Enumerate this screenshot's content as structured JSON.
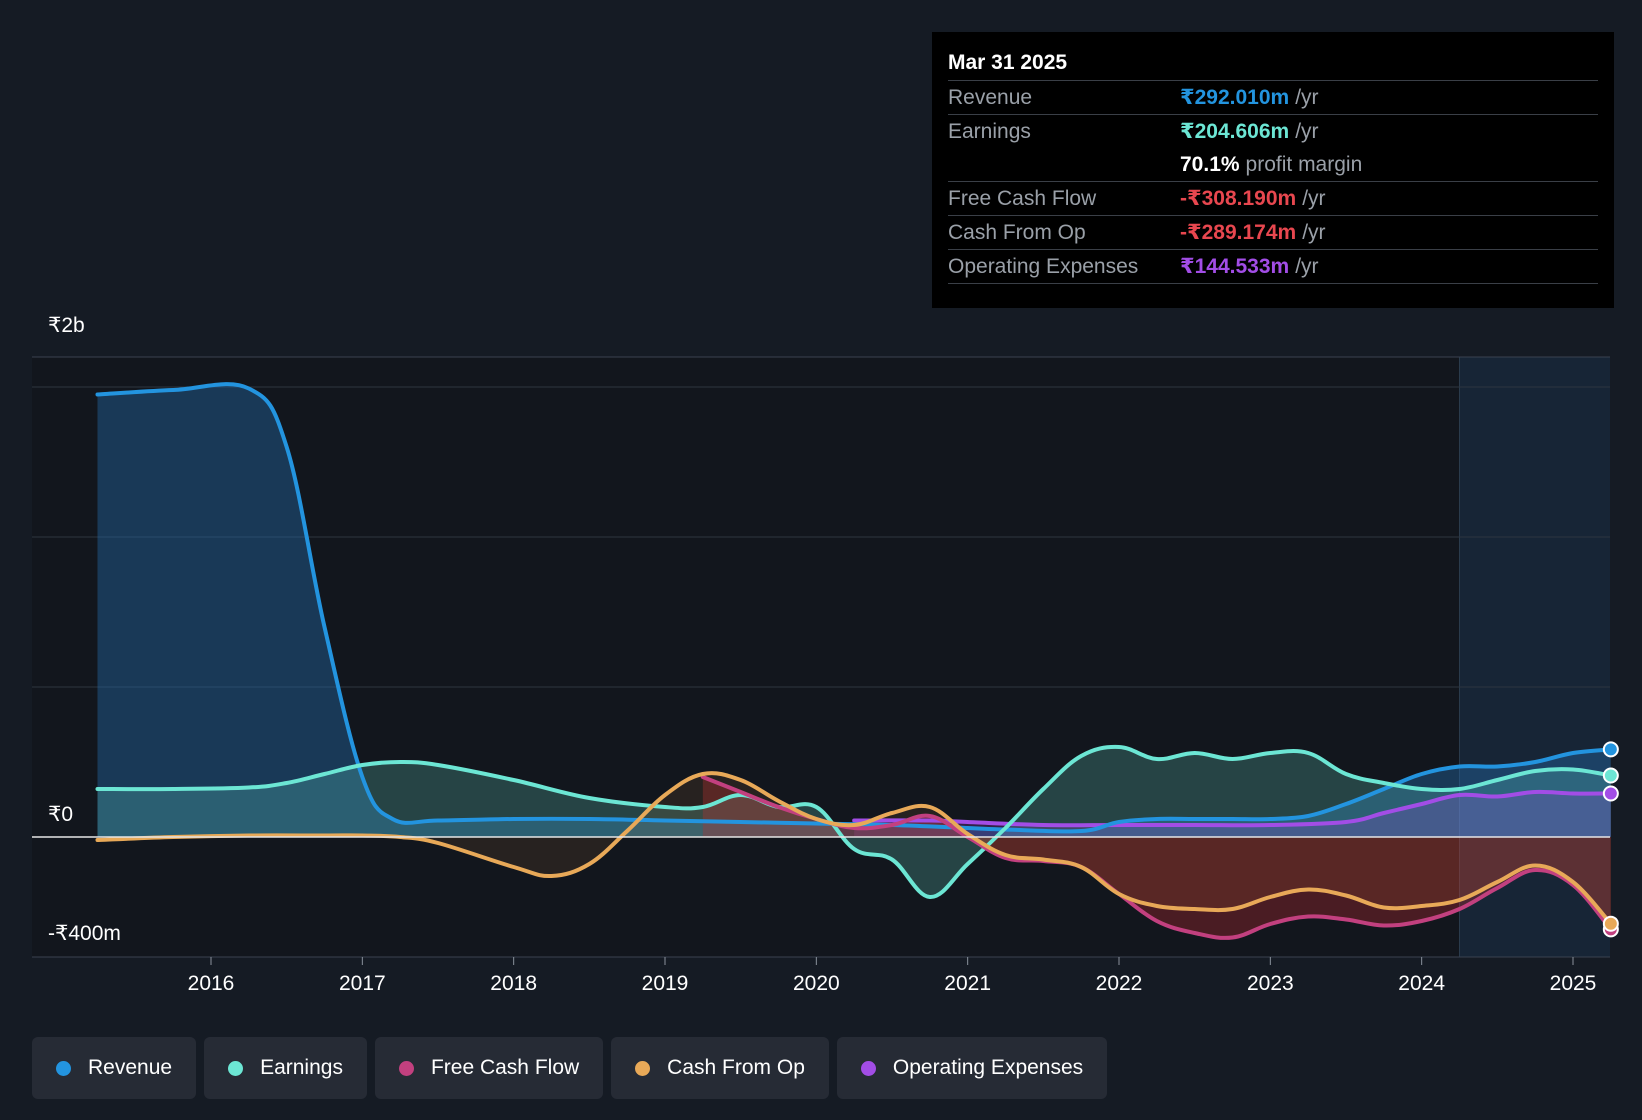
{
  "tooltip": {
    "date": "Mar 31 2025",
    "rows": [
      {
        "label": "Revenue",
        "value": "₹292.010m",
        "unit": "/yr",
        "color": "#2394df"
      },
      {
        "label": "Earnings",
        "value": "₹204.606m",
        "unit": "/yr",
        "color": "#6ce6d4"
      },
      {
        "label": "",
        "value": "70.1%",
        "unit": "profit margin",
        "color": "#ffffff"
      },
      {
        "label": "Free Cash Flow",
        "value": "-₹308.190m",
        "unit": "/yr",
        "color": "#e8474f"
      },
      {
        "label": "Cash From Op",
        "value": "-₹289.174m",
        "unit": "/yr",
        "color": "#e8474f"
      },
      {
        "label": "Operating Expenses",
        "value": "₹144.533m",
        "unit": "/yr",
        "color": "#a24de6"
      }
    ]
  },
  "legend": [
    {
      "label": "Revenue",
      "color": "#2394df"
    },
    {
      "label": "Earnings",
      "color": "#6ce6d4"
    },
    {
      "label": "Free Cash Flow",
      "color": "#c2407f"
    },
    {
      "label": "Cash From Op",
      "color": "#e8a958"
    },
    {
      "label": "Operating Expenses",
      "color": "#a24de6"
    }
  ],
  "chart_data": {
    "type": "line",
    "title": "",
    "xlabel": "",
    "ylabel": "",
    "y_tick_labels": [
      "₹2b",
      "₹0",
      "-₹400m"
    ],
    "x_tick_labels": [
      "2016",
      "2017",
      "2018",
      "2019",
      "2020",
      "2021",
      "2022",
      "2023",
      "2024",
      "2025"
    ],
    "x_ticks": [
      2016,
      2017,
      2018,
      2019,
      2020,
      2021,
      2022,
      2023,
      2024,
      2025
    ],
    "xlim": [
      2015.2,
      2025.25
    ],
    "ylim": [
      -400,
      1600
    ],
    "forecast_start": 2024.25,
    "series": [
      {
        "name": "Revenue",
        "color": "#2394df",
        "fill": true,
        "points": [
          [
            2015.25,
            1475
          ],
          [
            2015.75,
            1490
          ],
          [
            2016.25,
            1495
          ],
          [
            2016.5,
            1300
          ],
          [
            2016.75,
            700
          ],
          [
            2017.0,
            200
          ],
          [
            2017.2,
            60
          ],
          [
            2017.5,
            55
          ],
          [
            2018.0,
            60
          ],
          [
            2018.5,
            60
          ],
          [
            2019.0,
            55
          ],
          [
            2019.5,
            50
          ],
          [
            2020.0,
            45
          ],
          [
            2020.5,
            40
          ],
          [
            2021.0,
            30
          ],
          [
            2021.25,
            25
          ],
          [
            2021.75,
            20
          ],
          [
            2022.0,
            50
          ],
          [
            2022.25,
            60
          ],
          [
            2022.5,
            60
          ],
          [
            2022.75,
            60
          ],
          [
            2023.0,
            60
          ],
          [
            2023.25,
            70
          ],
          [
            2023.5,
            110
          ],
          [
            2023.75,
            160
          ],
          [
            2024.0,
            210
          ],
          [
            2024.25,
            235
          ],
          [
            2024.5,
            235
          ],
          [
            2024.75,
            250
          ],
          [
            2025.0,
            280
          ],
          [
            2025.25,
            292
          ]
        ]
      },
      {
        "name": "Earnings",
        "color": "#6ce6d4",
        "fill": true,
        "points": [
          [
            2015.25,
            160
          ],
          [
            2015.75,
            160
          ],
          [
            2016.25,
            165
          ],
          [
            2016.5,
            180
          ],
          [
            2016.75,
            210
          ],
          [
            2017.0,
            240
          ],
          [
            2017.25,
            250
          ],
          [
            2017.5,
            240
          ],
          [
            2018.0,
            190
          ],
          [
            2018.5,
            130
          ],
          [
            2019.0,
            100
          ],
          [
            2019.25,
            100
          ],
          [
            2019.5,
            140
          ],
          [
            2019.75,
            100
          ],
          [
            2020.0,
            100
          ],
          [
            2020.25,
            -40
          ],
          [
            2020.5,
            -75
          ],
          [
            2020.75,
            -200
          ],
          [
            2021.0,
            -90
          ],
          [
            2021.25,
            30
          ],
          [
            2021.5,
            160
          ],
          [
            2021.75,
            270
          ],
          [
            2022.0,
            300
          ],
          [
            2022.25,
            260
          ],
          [
            2022.5,
            280
          ],
          [
            2022.75,
            260
          ],
          [
            2023.0,
            280
          ],
          [
            2023.25,
            280
          ],
          [
            2023.5,
            210
          ],
          [
            2023.75,
            180
          ],
          [
            2024.0,
            160
          ],
          [
            2024.25,
            160
          ],
          [
            2024.5,
            190
          ],
          [
            2024.75,
            220
          ],
          [
            2025.0,
            225
          ],
          [
            2025.25,
            205
          ]
        ]
      },
      {
        "name": "Free Cash Flow",
        "color": "#c2407f",
        "fill": false,
        "points": [
          [
            2019.25,
            200
          ],
          [
            2019.5,
            150
          ],
          [
            2019.75,
            100
          ],
          [
            2020.0,
            60
          ],
          [
            2020.25,
            30
          ],
          [
            2020.5,
            40
          ],
          [
            2020.75,
            70
          ],
          [
            2021.0,
            0
          ],
          [
            2021.25,
            -70
          ],
          [
            2021.5,
            -80
          ],
          [
            2021.75,
            -100
          ],
          [
            2022.0,
            -190
          ],
          [
            2022.25,
            -280
          ],
          [
            2022.5,
            -320
          ],
          [
            2022.75,
            -335
          ],
          [
            2023.0,
            -290
          ],
          [
            2023.25,
            -265
          ],
          [
            2023.5,
            -275
          ],
          [
            2023.75,
            -295
          ],
          [
            2024.0,
            -280
          ],
          [
            2024.25,
            -240
          ],
          [
            2024.5,
            -170
          ],
          [
            2024.75,
            -110
          ],
          [
            2025.0,
            -160
          ],
          [
            2025.25,
            -308
          ]
        ]
      },
      {
        "name": "Cash From Op",
        "color": "#e8a958",
        "fill": false,
        "points": [
          [
            2015.25,
            -10
          ],
          [
            2015.75,
            0
          ],
          [
            2016.25,
            5
          ],
          [
            2016.75,
            5
          ],
          [
            2017.0,
            5
          ],
          [
            2017.25,
            0
          ],
          [
            2017.5,
            -20
          ],
          [
            2018.0,
            -100
          ],
          [
            2018.25,
            -130
          ],
          [
            2018.5,
            -90
          ],
          [
            2018.75,
            20
          ],
          [
            2019.0,
            140
          ],
          [
            2019.25,
            210
          ],
          [
            2019.5,
            190
          ],
          [
            2019.75,
            120
          ],
          [
            2020.0,
            60
          ],
          [
            2020.25,
            40
          ],
          [
            2020.5,
            80
          ],
          [
            2020.75,
            100
          ],
          [
            2021.0,
            10
          ],
          [
            2021.25,
            -60
          ],
          [
            2021.5,
            -75
          ],
          [
            2021.75,
            -100
          ],
          [
            2022.0,
            -190
          ],
          [
            2022.25,
            -230
          ],
          [
            2022.5,
            -240
          ],
          [
            2022.75,
            -240
          ],
          [
            2023.0,
            -200
          ],
          [
            2023.25,
            -175
          ],
          [
            2023.5,
            -195
          ],
          [
            2023.75,
            -235
          ],
          [
            2024.0,
            -230
          ],
          [
            2024.25,
            -210
          ],
          [
            2024.5,
            -150
          ],
          [
            2024.75,
            -95
          ],
          [
            2025.0,
            -150
          ],
          [
            2025.25,
            -289
          ]
        ]
      },
      {
        "name": "Operating Expenses",
        "color": "#a24de6",
        "fill": true,
        "points": [
          [
            2020.25,
            55
          ],
          [
            2020.75,
            55
          ],
          [
            2021.0,
            50
          ],
          [
            2021.5,
            40
          ],
          [
            2022.0,
            40
          ],
          [
            2022.5,
            40
          ],
          [
            2023.0,
            40
          ],
          [
            2023.5,
            50
          ],
          [
            2023.75,
            80
          ],
          [
            2024.0,
            110
          ],
          [
            2024.25,
            140
          ],
          [
            2024.5,
            135
          ],
          [
            2024.75,
            150
          ],
          [
            2025.0,
            145
          ],
          [
            2025.25,
            145
          ]
        ]
      }
    ]
  }
}
